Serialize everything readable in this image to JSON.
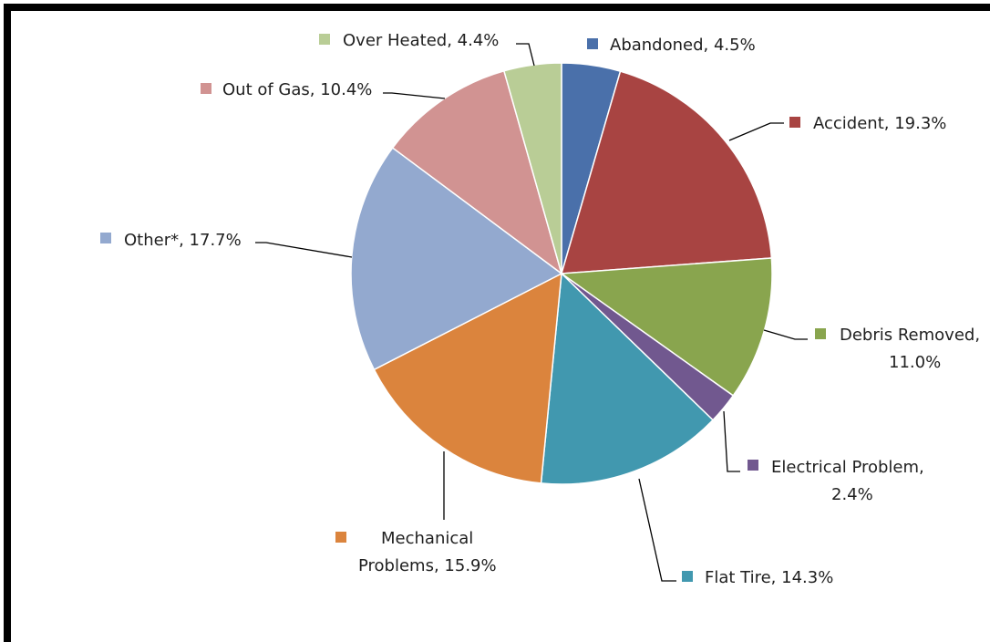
{
  "chart_data": {
    "type": "pie",
    "title": "",
    "slices": [
      {
        "name": "Abandoned",
        "value": 4.5,
        "label": "Abandoned, 4.5%",
        "color": "#4a70aa"
      },
      {
        "name": "Accident",
        "value": 19.3,
        "label": "Accident, 19.3%",
        "color": "#a84442"
      },
      {
        "name": "Debris Removed",
        "value": 11.0,
        "label": "Debris Removed, 11.0%",
        "color": "#89a54e"
      },
      {
        "name": "Electrical Problem",
        "value": 2.4,
        "label": "Electrical Problem, 2.4%",
        "color": "#71588f"
      },
      {
        "name": "Flat Tire",
        "value": 14.3,
        "label": "Flat Tire, 14.3%",
        "color": "#4198af"
      },
      {
        "name": "Mechanical Problems",
        "value": 15.9,
        "label": "Mechanical Problems, 15.9%",
        "color": "#db843d"
      },
      {
        "name": "Other*",
        "value": 17.7,
        "label": "Other*, 17.7%",
        "color": "#93a9cf"
      },
      {
        "name": "Out of Gas",
        "value": 10.4,
        "label": "Out of Gas, 10.4%",
        "color": "#d19392"
      },
      {
        "name": "Over Heated",
        "value": 4.4,
        "label": "Over Heated, 4.4%",
        "color": "#b9cd96"
      }
    ],
    "legend": "data labels beside slices with color markers",
    "start_angle": "12 o'clock, clockwise"
  },
  "labels": {
    "abandoned": [
      "Abandoned, 4.5%"
    ],
    "accident": [
      "Accident, 19.3%"
    ],
    "debris": [
      "Debris Removed,",
      "11.0%"
    ],
    "electrical": [
      "Electrical Problem,",
      "2.4%"
    ],
    "flat": [
      "Flat Tire, 14.3%"
    ],
    "mechanical": [
      "Mechanical",
      "Problems, 15.9%"
    ],
    "other": [
      "Other*, 17.7%"
    ],
    "gas": [
      "Out of Gas, 10.4%"
    ],
    "heated": [
      "Over Heated, 4.4%"
    ]
  }
}
